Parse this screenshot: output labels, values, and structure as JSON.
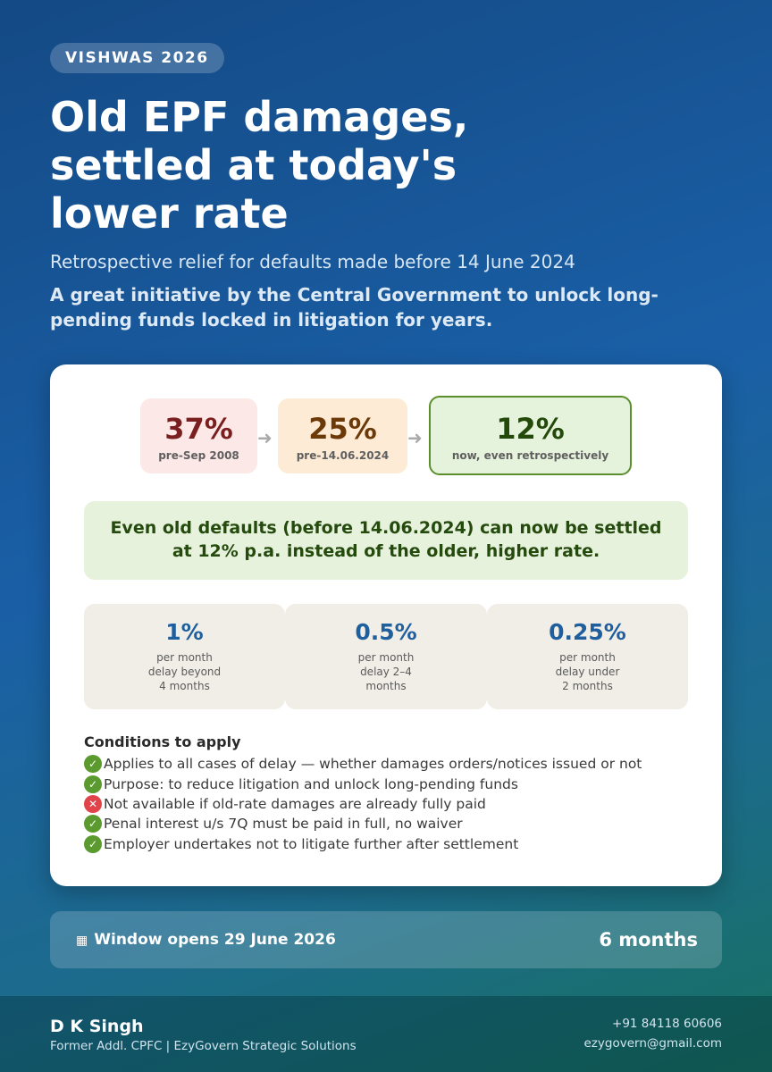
{
  "badge": "VISHWAS 2026",
  "title_lines": [
    "Old EPF damages,",
    "settled at today's",
    "lower rate"
  ],
  "subtitle": "Retrospective relief for defaults made before 14 June 2024",
  "lead": "A great initiative by the Central Government to unlock long-pending funds locked in litigation for years.",
  "rates": [
    {
      "value": "37%",
      "caption": "pre-Sep 2008"
    },
    {
      "value": "25%",
      "caption": "pre-14.06.2024"
    },
    {
      "value": "12%",
      "caption": "now, even retrospectively"
    }
  ],
  "arrow_glyph": "➜",
  "highlight_lines": [
    "Even old defaults (before 14.06.2024) can now be settled",
    "at 12% p.a. instead of the older, higher rate."
  ],
  "tiles": [
    {
      "value": "1%",
      "lines": [
        "per month",
        "delay beyond",
        "4 months"
      ]
    },
    {
      "value": "0.5%",
      "lines": [
        "per month",
        "delay 2–4",
        "months"
      ]
    },
    {
      "value": "0.25%",
      "lines": [
        "per month",
        "delay under",
        "2 months"
      ]
    }
  ],
  "conditions": {
    "heading": "Conditions to apply",
    "check_glyph": "✓",
    "cross_glyph": "✕",
    "items": [
      {
        "status": "check",
        "text": "Applies to all cases of delay — whether damages orders/notices issued or not"
      },
      {
        "status": "check",
        "text": "Purpose: to reduce litigation and unlock long-pending funds"
      },
      {
        "status": "cross",
        "text": "Not available if old-rate damages are already fully paid"
      },
      {
        "status": "check",
        "text": "Penal interest u/s 7Q must be paid in full, no waiver"
      },
      {
        "status": "check",
        "text": "Employer undertakes not to litigate further after settlement"
      }
    ]
  },
  "window": {
    "icon": "calendar-icon",
    "icon_glyph": "▦",
    "label": "Window opens 29 June 2026",
    "duration": "6 months"
  },
  "footer": {
    "name": "D K Singh",
    "role": "Former Addl. CPFC | EzyGovern Strategic Solutions",
    "phone": "+91 84118 60606",
    "email": "ezygovern@gmail.com"
  }
}
